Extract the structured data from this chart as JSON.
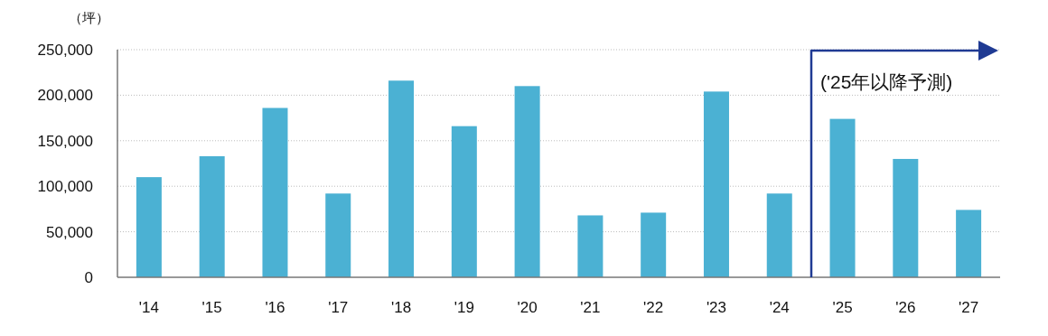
{
  "chart_data": {
    "type": "bar",
    "ylabel": "（坪）",
    "categories": [
      "'14",
      "'15",
      "'16",
      "'17",
      "'18",
      "'19",
      "'20",
      "'21",
      "'22",
      "'23",
      "'24",
      "'25",
      "'26",
      "'27"
    ],
    "values": [
      110000,
      133000,
      186000,
      92000,
      216000,
      166000,
      210000,
      68000,
      71000,
      204000,
      92000,
      174000,
      130000,
      74000
    ],
    "color": "#4bb1d3",
    "ylim": [
      0,
      250000
    ],
    "yticks": [
      {
        "value": 0,
        "label": "0"
      },
      {
        "value": 50000,
        "label": "50,000"
      },
      {
        "value": 100000,
        "label": "100,000"
      },
      {
        "value": 150000,
        "label": "150,000"
      },
      {
        "value": 200000,
        "label": "200,000"
      },
      {
        "value": 250000,
        "label": "250,000"
      }
    ],
    "grid": "y",
    "annotations": [
      "('25年以降予測)"
    ]
  }
}
